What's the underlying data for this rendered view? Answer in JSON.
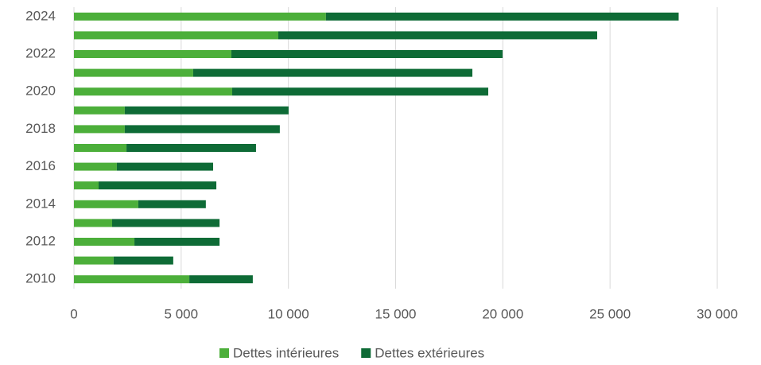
{
  "chart_data": {
    "type": "stacked-hbar",
    "categories": [
      "2010",
      null,
      "2012",
      null,
      "2014",
      null,
      "2016",
      null,
      "2018",
      null,
      "2020",
      null,
      "2022",
      null,
      "2024"
    ],
    "series": [
      {
        "name": "Dettes intérieures",
        "color": "#4caf3a",
        "values": [
          5380,
          1850,
          2820,
          1780,
          3000,
          1150,
          2000,
          2450,
          2370,
          2370,
          7380,
          5560,
          7340,
          9530,
          11750
        ]
      },
      {
        "name": "Dettes extérieures",
        "color": "#0e6b36",
        "values": [
          2960,
          2780,
          3970,
          5010,
          3150,
          5490,
          4490,
          6040,
          7230,
          7640,
          11940,
          13020,
          12650,
          14870,
          16450
        ]
      }
    ],
    "xlim": [
      0,
      30000
    ],
    "xticks": [
      0,
      {
        "value": 5000,
        "label": "5 000"
      },
      {
        "value": 10000,
        "label": "10 000"
      },
      {
        "value": 15000,
        "label": "15 000"
      },
      {
        "value": 20000,
        "label": "20 000"
      },
      {
        "value": 25000,
        "label": "25 000"
      },
      {
        "value": 30000,
        "label": "30 000"
      }
    ],
    "grid": true,
    "legend": "bottom"
  }
}
